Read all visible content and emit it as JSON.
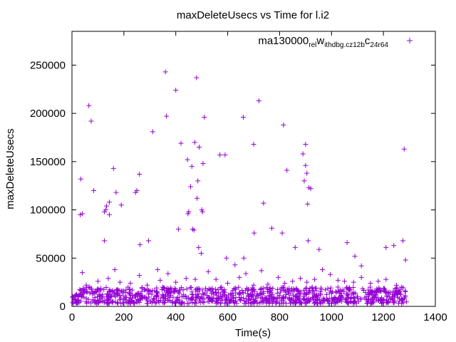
{
  "chart_data": {
    "type": "scatter",
    "title": "maxDeleteUsecs vs Time for l.i2",
    "xlabel": "Time(s)",
    "ylabel": "maxDeleteUsecs",
    "xlim": [
      0,
      1400
    ],
    "ylim": [
      0,
      285000
    ],
    "x_ticks": [
      0,
      200,
      400,
      600,
      800,
      1000,
      1200,
      1400
    ],
    "y_ticks": [
      0,
      50000,
      100000,
      150000,
      200000,
      250000
    ],
    "x_tick_labels": [
      "0",
      "200",
      "400",
      "600",
      "800",
      "1000",
      "1200",
      "1400"
    ],
    "y_tick_labels": [
      "0",
      "50000",
      "100000",
      "150000",
      "200000",
      "250000"
    ],
    "grid": false,
    "legend_position": "top-right",
    "marker": "plus",
    "color": "#9400d3",
    "series": [
      {
        "legend_parts": [
          "ma130000",
          "rel",
          "w",
          "ithdbg.cz12b",
          "c",
          "24r64"
        ],
        "points": [
          [
            32,
            95000
          ],
          [
            40,
            96000
          ],
          [
            34,
            132000
          ],
          [
            65,
            208000
          ],
          [
            74,
            192000
          ],
          [
            84,
            120000
          ],
          [
            125,
            68000
          ],
          [
            125,
            98000
          ],
          [
            130,
            100000
          ],
          [
            133,
            104000
          ],
          [
            144,
            108000
          ],
          [
            144,
            95000
          ],
          [
            160,
            143000
          ],
          [
            170,
            118000
          ],
          [
            190,
            105000
          ],
          [
            245,
            118000
          ],
          [
            250,
            120000
          ],
          [
            260,
            137000
          ],
          [
            262,
            64000
          ],
          [
            295,
            68000
          ],
          [
            311,
            181000
          ],
          [
            360,
            243000
          ],
          [
            364,
            197000
          ],
          [
            400,
            224000
          ],
          [
            410,
            80000
          ],
          [
            420,
            169000
          ],
          [
            445,
            152000
          ],
          [
            447,
            96000
          ],
          [
            450,
            98000
          ],
          [
            457,
            124000
          ],
          [
            462,
            145000
          ],
          [
            465,
            80000
          ],
          [
            470,
            79000
          ],
          [
            473,
            170000
          ],
          [
            480,
            237000
          ],
          [
            482,
            112000
          ],
          [
            485,
            130000
          ],
          [
            488,
            61000
          ],
          [
            490,
            165000
          ],
          [
            498,
            55000
          ],
          [
            500,
            100000
          ],
          [
            503,
            98000
          ],
          [
            505,
            148000
          ],
          [
            510,
            196000
          ],
          [
            570,
            157000
          ],
          [
            590,
            157000
          ],
          [
            595,
            50000
          ],
          [
            628,
            43000
          ],
          [
            660,
            196000
          ],
          [
            662,
            50000
          ],
          [
            700,
            168000
          ],
          [
            702,
            76000
          ],
          [
            720,
            213000
          ],
          [
            738,
            107000
          ],
          [
            770,
            81000
          ],
          [
            810,
            76000
          ],
          [
            815,
            188000
          ],
          [
            828,
            141000
          ],
          [
            860,
            61000
          ],
          [
            890,
            158000
          ],
          [
            895,
            130000
          ],
          [
            900,
            168000
          ],
          [
            900,
            146000
          ],
          [
            905,
            138000
          ],
          [
            908,
            106000
          ],
          [
            910,
            68000
          ],
          [
            913,
            123000
          ],
          [
            920,
            122000
          ],
          [
            952,
            59000
          ],
          [
            1060,
            66000
          ],
          [
            1090,
            52000
          ],
          [
            1115,
            42000
          ],
          [
            1210,
            61000
          ],
          [
            1240,
            63000
          ],
          [
            1275,
            68000
          ],
          [
            1280,
            163000
          ],
          [
            1285,
            48000
          ],
          [
            40,
            35000
          ],
          [
            55,
            22000
          ],
          [
            68,
            20000
          ],
          [
            100,
            26000
          ],
          [
            140,
            29000
          ],
          [
            165,
            38000
          ],
          [
            185,
            25000
          ],
          [
            225,
            24000
          ],
          [
            260,
            32000
          ],
          [
            290,
            22000
          ],
          [
            330,
            38000
          ],
          [
            340,
            27000
          ],
          [
            370,
            34000
          ],
          [
            400,
            25000
          ],
          [
            440,
            29000
          ],
          [
            475,
            28000
          ],
          [
            525,
            36000
          ],
          [
            555,
            28000
          ],
          [
            600,
            24000
          ],
          [
            645,
            30000
          ],
          [
            670,
            34000
          ],
          [
            700,
            22000
          ],
          [
            730,
            37000
          ],
          [
            755,
            23000
          ],
          [
            795,
            30000
          ],
          [
            820,
            24000
          ],
          [
            850,
            26000
          ],
          [
            880,
            29000
          ],
          [
            905,
            25000
          ],
          [
            935,
            28000
          ],
          [
            965,
            38000
          ],
          [
            995,
            33000
          ],
          [
            1025,
            27000
          ],
          [
            1050,
            26000
          ],
          [
            1085,
            25000
          ],
          [
            1115,
            30000
          ],
          [
            1150,
            24000
          ],
          [
            1180,
            26000
          ],
          [
            1210,
            28000
          ],
          [
            1250,
            22000
          ],
          [
            1270,
            20000
          ]
        ]
      }
    ],
    "dense_band": {
      "x_range": [
        0,
        1290
      ],
      "y_range": [
        3000,
        20000
      ],
      "approximate_point_count": 1000
    }
  }
}
